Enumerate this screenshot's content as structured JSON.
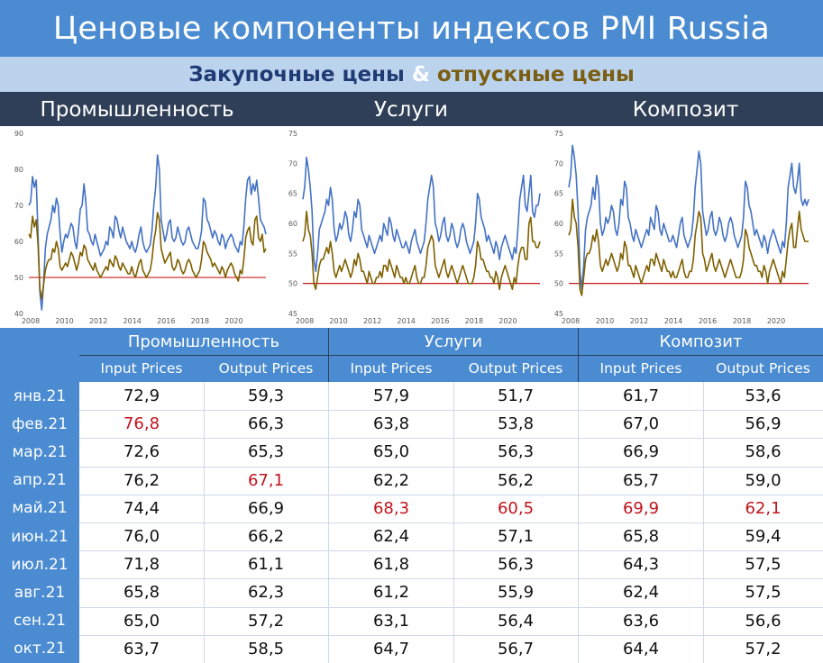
{
  "title": "Ценовые компоненты индексов PMI Russia",
  "subtitle": {
    "part1": "Закупочные цены",
    "amp": "&",
    "part2": "отпускные цены"
  },
  "colors": {
    "input_line": "#4472c4",
    "output_line": "#7f6000",
    "threshold": "#c00000",
    "header": "#4a8bd1",
    "dark_band": "#2f3f57",
    "highlight": "#c0141c"
  },
  "chart_data": [
    {
      "type": "line",
      "title": "Промышленность",
      "xticks": [
        "2008",
        "2010",
        "2012",
        "2014",
        "2016",
        "2018",
        "2020"
      ],
      "ylim": [
        40,
        90
      ],
      "yticks": [
        40,
        50,
        60,
        70,
        80,
        90
      ],
      "threshold": 50,
      "series": [
        {
          "values": [
            70,
            71,
            78,
            75,
            77,
            62,
            46,
            41,
            48,
            58,
            62,
            64,
            66,
            70,
            68,
            72,
            70,
            62,
            57,
            60,
            62,
            61,
            63,
            65,
            64,
            60,
            58,
            63,
            69,
            70,
            76,
            71,
            63,
            62,
            60,
            59,
            62,
            60,
            58,
            56,
            57,
            58,
            60,
            59,
            64,
            63,
            61,
            67,
            66,
            63,
            61,
            64,
            62,
            60,
            59,
            58,
            60,
            58,
            57,
            59,
            62,
            64,
            60,
            58,
            57,
            58,
            59,
            63,
            70,
            75,
            84,
            80,
            66,
            63,
            60,
            62,
            65,
            66,
            61,
            60,
            61,
            64,
            62,
            60,
            59,
            60,
            63,
            64,
            62,
            60,
            59,
            58,
            58,
            60,
            63,
            72,
            71,
            66,
            65,
            63,
            61,
            63,
            62,
            60,
            59,
            62,
            61,
            58,
            60,
            61,
            62,
            61,
            59,
            58,
            57,
            60,
            59,
            64,
            72,
            77,
            78,
            73,
            76,
            74,
            77,
            72,
            66,
            65,
            64,
            62
          ]
        },
        {
          "values": [
            62,
            61,
            67,
            64,
            66,
            59,
            47,
            44,
            48,
            52,
            54,
            55,
            55,
            58,
            57,
            60,
            58,
            53,
            52,
            53,
            54,
            53,
            55,
            57,
            56,
            54,
            52,
            54,
            57,
            56,
            59,
            58,
            55,
            54,
            53,
            52,
            54,
            52,
            51,
            50,
            51,
            52,
            53,
            52,
            55,
            54,
            53,
            56,
            55,
            53,
            52,
            54,
            53,
            52,
            51,
            51,
            53,
            51,
            50,
            52,
            54,
            55,
            52,
            51,
            50,
            51,
            52,
            55,
            60,
            63,
            68,
            66,
            58,
            56,
            54,
            55,
            56,
            57,
            53,
            52,
            53,
            55,
            54,
            52,
            51,
            52,
            54,
            55,
            54,
            52,
            51,
            50,
            51,
            52,
            55,
            60,
            59,
            57,
            56,
            55,
            53,
            54,
            53,
            52,
            51,
            53,
            52,
            50,
            52,
            53,
            54,
            53,
            51,
            50,
            49,
            52,
            51,
            55,
            61,
            63,
            64,
            60,
            59,
            66,
            67,
            61,
            60,
            62,
            57,
            58
          ]
        }
      ]
    },
    {
      "type": "line",
      "title": "Услуги",
      "xticks": [
        "2008",
        "2010",
        "2012",
        "2014",
        "2016",
        "2018",
        "2020"
      ],
      "ylim": [
        45,
        75
      ],
      "yticks": [
        45,
        50,
        55,
        60,
        65,
        70,
        75
      ],
      "threshold": 50,
      "series": [
        {
          "values": [
            64,
            66,
            71,
            69,
            66,
            62,
            54,
            52,
            55,
            59,
            60,
            61,
            62,
            64,
            63,
            66,
            64,
            59,
            57,
            58,
            60,
            59,
            60,
            62,
            61,
            58,
            57,
            59,
            62,
            61,
            64,
            63,
            59,
            58,
            57,
            56,
            58,
            57,
            56,
            55,
            56,
            57,
            58,
            57,
            60,
            59,
            58,
            61,
            60,
            58,
            57,
            59,
            58,
            57,
            56,
            56,
            57,
            56,
            55,
            57,
            58,
            59,
            57,
            56,
            55,
            56,
            57,
            60,
            64,
            66,
            68,
            66,
            60,
            59,
            57,
            58,
            60,
            61,
            58,
            57,
            58,
            60,
            59,
            57,
            56,
            57,
            59,
            60,
            59,
            57,
            56,
            55,
            56,
            57,
            60,
            65,
            64,
            61,
            60,
            59,
            57,
            58,
            57,
            56,
            55,
            57,
            56,
            54,
            56,
            57,
            58,
            57,
            56,
            55,
            54,
            56,
            55,
            59,
            64,
            66,
            68,
            63,
            62,
            65,
            68,
            62,
            61,
            63,
            63,
            65
          ]
        },
        {
          "values": [
            57,
            58,
            62,
            59,
            58,
            55,
            50,
            49,
            51,
            53,
            54,
            54,
            55,
            56,
            55,
            57,
            55,
            52,
            51,
            52,
            53,
            52,
            53,
            54,
            53,
            52,
            51,
            52,
            54,
            53,
            55,
            54,
            52,
            52,
            51,
            50,
            52,
            51,
            50,
            50,
            51,
            51,
            52,
            51,
            53,
            53,
            52,
            54,
            53,
            52,
            51,
            53,
            52,
            51,
            51,
            50,
            51,
            50,
            50,
            51,
            52,
            53,
            51,
            50,
            50,
            51,
            51,
            53,
            56,
            57,
            58,
            57,
            53,
            52,
            51,
            52,
            53,
            54,
            52,
            51,
            52,
            53,
            52,
            51,
            50,
            51,
            52,
            53,
            52,
            51,
            50,
            50,
            50,
            51,
            53,
            57,
            56,
            54,
            54,
            53,
            52,
            52,
            51,
            51,
            50,
            52,
            51,
            49,
            51,
            52,
            53,
            52,
            51,
            50,
            49,
            51,
            50,
            53,
            55,
            56,
            56,
            54,
            54,
            60,
            61,
            57,
            57,
            56,
            56,
            57
          ]
        }
      ]
    },
    {
      "type": "line",
      "title": "Композит",
      "xticks": [
        "2008",
        "2010",
        "2012",
        "2014",
        "2016",
        "2018",
        "2020"
      ],
      "ylim": [
        45,
        75
      ],
      "yticks": [
        45,
        50,
        55,
        60,
        65,
        70,
        75
      ],
      "threshold": 50,
      "series": [
        {
          "values": [
            66,
            68,
            73,
            71,
            68,
            62,
            52,
            49,
            53,
            59,
            61,
            62,
            63,
            66,
            64,
            68,
            66,
            60,
            58,
            59,
            61,
            60,
            61,
            63,
            62,
            59,
            58,
            60,
            64,
            63,
            67,
            66,
            61,
            60,
            58,
            57,
            59,
            58,
            57,
            56,
            57,
            58,
            59,
            58,
            61,
            60,
            59,
            63,
            62,
            59,
            58,
            60,
            59,
            58,
            57,
            57,
            58,
            57,
            56,
            58,
            60,
            61,
            58,
            57,
            56,
            57,
            58,
            61,
            66,
            69,
            72,
            70,
            62,
            60,
            58,
            59,
            61,
            62,
            59,
            58,
            59,
            61,
            60,
            58,
            57,
            58,
            60,
            61,
            60,
            58,
            57,
            56,
            57,
            58,
            61,
            67,
            66,
            63,
            62,
            60,
            58,
            59,
            58,
            57,
            56,
            58,
            57,
            55,
            57,
            58,
            59,
            58,
            57,
            56,
            55,
            57,
            56,
            60,
            66,
            68,
            70,
            66,
            65,
            67,
            70,
            64,
            63,
            64,
            63,
            64
          ]
        },
        {
          "values": [
            58,
            59,
            64,
            61,
            60,
            56,
            49,
            48,
            51,
            54,
            55,
            55,
            56,
            58,
            57,
            59,
            57,
            53,
            52,
            53,
            54,
            53,
            54,
            55,
            54,
            53,
            52,
            53,
            55,
            54,
            57,
            56,
            53,
            53,
            52,
            51,
            53,
            52,
            51,
            50,
            51,
            52,
            53,
            52,
            54,
            54,
            53,
            55,
            54,
            53,
            52,
            54,
            53,
            52,
            52,
            51,
            52,
            51,
            51,
            52,
            53,
            54,
            52,
            51,
            51,
            52,
            52,
            54,
            58,
            60,
            62,
            61,
            55,
            54,
            52,
            53,
            54,
            55,
            53,
            52,
            53,
            54,
            53,
            52,
            51,
            52,
            53,
            54,
            53,
            52,
            51,
            51,
            51,
            52,
            54,
            59,
            58,
            56,
            55,
            54,
            53,
            53,
            52,
            52,
            51,
            53,
            52,
            50,
            52,
            53,
            54,
            53,
            52,
            51,
            50,
            52,
            51,
            54,
            57,
            59,
            60,
            56,
            56,
            59,
            62,
            59,
            58,
            57,
            57,
            57
          ]
        }
      ]
    },
    {
      "type": "table",
      "groups": [
        "Промышленность",
        "Услуги",
        "Композит"
      ],
      "columns": [
        "Input Prices",
        "Output Prices"
      ],
      "rows": [
        {
          "label": "янв.21",
          "values": [
            "72,9",
            "59,3",
            "57,9",
            "51,7",
            "61,7",
            "53,6"
          ],
          "highlight": []
        },
        {
          "label": "фев.21",
          "values": [
            "76,8",
            "66,3",
            "63,8",
            "53,8",
            "67,0",
            "56,9"
          ],
          "highlight": [
            0
          ]
        },
        {
          "label": "мар.21",
          "values": [
            "72,6",
            "65,3",
            "65,0",
            "56,3",
            "66,9",
            "58,6"
          ],
          "highlight": []
        },
        {
          "label": "апр.21",
          "values": [
            "76,2",
            "67,1",
            "62,2",
            "56,2",
            "65,7",
            "59,0"
          ],
          "highlight": [
            1
          ]
        },
        {
          "label": "май.21",
          "values": [
            "74,4",
            "66,9",
            "68,3",
            "60,5",
            "69,9",
            "62,1"
          ],
          "highlight": [
            2,
            3,
            4,
            5
          ]
        },
        {
          "label": "июн.21",
          "values": [
            "76,0",
            "66,2",
            "62,4",
            "57,1",
            "65,8",
            "59,4"
          ],
          "highlight": []
        },
        {
          "label": "июл.21",
          "values": [
            "71,8",
            "61,1",
            "61,8",
            "56,3",
            "64,3",
            "57,5"
          ],
          "highlight": []
        },
        {
          "label": "авг.21",
          "values": [
            "65,8",
            "62,3",
            "61,2",
            "55,9",
            "62,4",
            "57,5"
          ],
          "highlight": []
        },
        {
          "label": "сен.21",
          "values": [
            "65,0",
            "57,2",
            "63,1",
            "56,4",
            "63,6",
            "56,6"
          ],
          "highlight": []
        },
        {
          "label": "окт.21",
          "values": [
            "63,7",
            "58,5",
            "64,7",
            "56,7",
            "64,4",
            "57,2"
          ],
          "highlight": []
        }
      ]
    }
  ]
}
